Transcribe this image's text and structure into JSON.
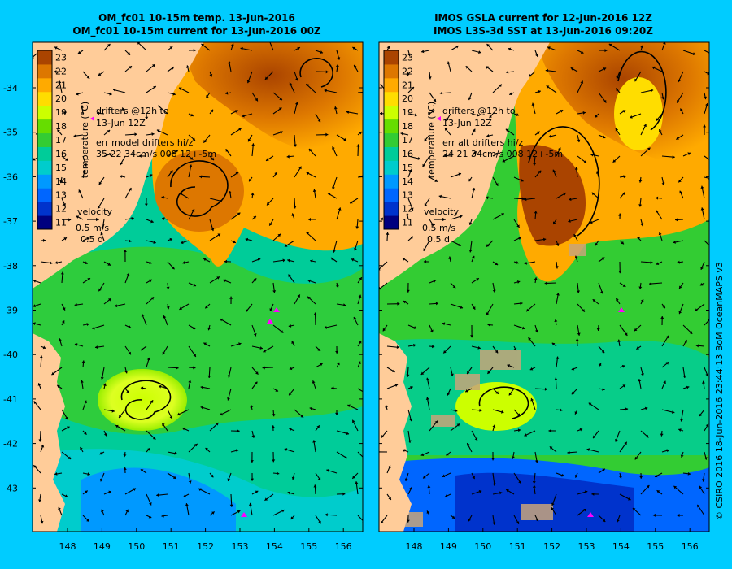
{
  "left_panel": {
    "title_line1": "OM_fc01 10-15m temp. 13-Jun-2016",
    "title_line2": "OM_fc01 10-15m current for 13-Jun-2016 00Z",
    "drifters_line1": "drifters @12h to",
    "drifters_line2": "13-Jun 12Z",
    "err_line1": "err model drifters hi/z",
    "err_line2": "35 22 34cm/s 008 12+-5m",
    "velocity_label": "velocity",
    "velocity_speed": "0.5 m/s",
    "velocity_time": "0.5 d"
  },
  "right_panel": {
    "title_line1": "IMOS GSLA current for 12-Jun-2016 12Z",
    "title_line2": "IMOS L3S-3d SST at 13-Jun-2016 09:20Z",
    "drifters_line1": "drifters @12h to",
    "drifters_line2": "13-Jun 12Z",
    "err_line1": "err alt drifters hi/z",
    "err_line2": "24 21 34cm/s 008 12+-5m",
    "velocity_label": "velocity",
    "velocity_speed": "0.5 m/s",
    "velocity_time": "0.5 d"
  },
  "colorbar": {
    "label": "temperature (°C)",
    "ticks": [
      "11",
      "12",
      "13",
      "14",
      "15",
      "16",
      "17",
      "18",
      "19",
      "20",
      "21",
      "22",
      "23"
    ],
    "colors": [
      "#00007f",
      "#0033cc",
      "#0066ff",
      "#0099ff",
      "#00cccc",
      "#00cc99",
      "#33cc33",
      "#66dd00",
      "#ccff00",
      "#ffdd00",
      "#ffaa00",
      "#dd7700",
      "#aa4400"
    ]
  },
  "axes": {
    "lat_labels": [
      "-34",
      "-35",
      "-36",
      "-37",
      "-38",
      "-39",
      "-40",
      "-41",
      "-42",
      "-43"
    ],
    "lon_labels": [
      "148",
      "149",
      "150",
      "151",
      "152",
      "153",
      "154",
      "155",
      "156"
    ]
  },
  "credit": "© CSIRO 2016  18-Jun-2016 23:44:13 BoM OceanMAPS v3",
  "colors": {
    "background": "#00ccff",
    "land": "#ffcc99",
    "drifter": "#ff00ff"
  }
}
